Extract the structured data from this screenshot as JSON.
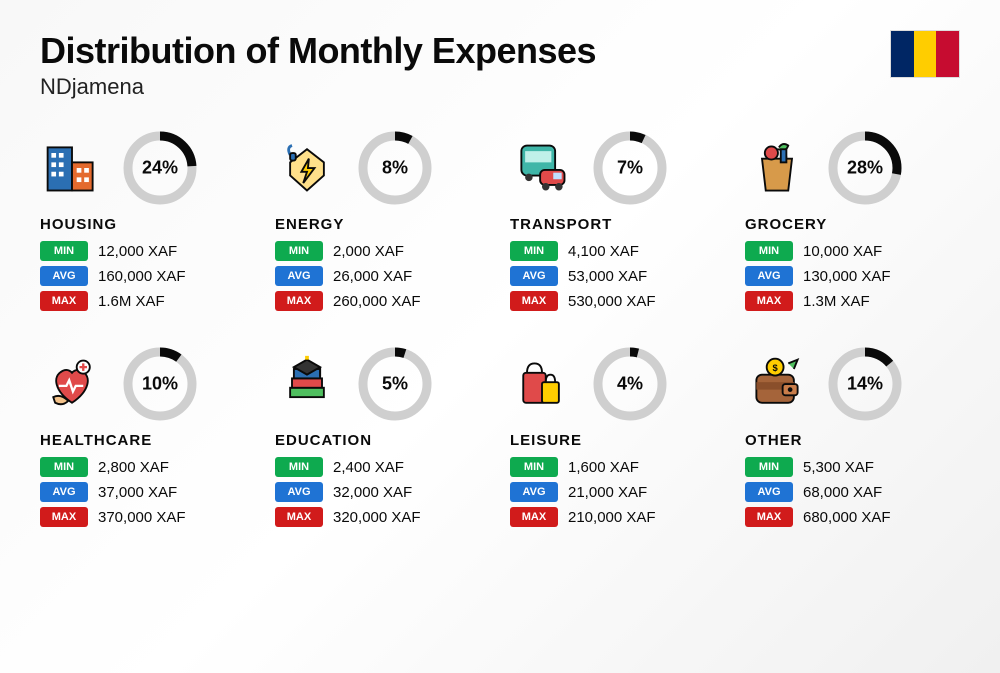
{
  "title": "Distribution of Monthly Expenses",
  "subtitle": "NDjamena",
  "flag_colors": [
    "#002664",
    "#ffcd00",
    "#c60c30"
  ],
  "donut": {
    "radius": 32,
    "stroke_width": 9,
    "track_color": "#cfcfcf",
    "fill_color": "#0a0a0a"
  },
  "badges": {
    "min": {
      "label": "MIN",
      "bg": "#0eaa4f"
    },
    "avg": {
      "label": "AVG",
      "bg": "#1f73d4"
    },
    "max": {
      "label": "MAX",
      "bg": "#d11b1b"
    }
  },
  "categories": [
    {
      "name": "HOUSING",
      "percent": 24,
      "min": "12,000 XAF",
      "avg": "160,000 XAF",
      "max": "1.6M XAF",
      "icon": "buildings"
    },
    {
      "name": "ENERGY",
      "percent": 8,
      "min": "2,000 XAF",
      "avg": "26,000 XAF",
      "max": "260,000 XAF",
      "icon": "energy"
    },
    {
      "name": "TRANSPORT",
      "percent": 7,
      "min": "4,100 XAF",
      "avg": "53,000 XAF",
      "max": "530,000 XAF",
      "icon": "transport"
    },
    {
      "name": "GROCERY",
      "percent": 28,
      "min": "10,000 XAF",
      "avg": "130,000 XAF",
      "max": "1.3M XAF",
      "icon": "grocery"
    },
    {
      "name": "HEALTHCARE",
      "percent": 10,
      "min": "2,800 XAF",
      "avg": "37,000 XAF",
      "max": "370,000 XAF",
      "icon": "healthcare"
    },
    {
      "name": "EDUCATION",
      "percent": 5,
      "min": "2,400 XAF",
      "avg": "32,000 XAF",
      "max": "320,000 XAF",
      "icon": "education"
    },
    {
      "name": "LEISURE",
      "percent": 4,
      "min": "1,600 XAF",
      "avg": "21,000 XAF",
      "max": "210,000 XAF",
      "icon": "leisure"
    },
    {
      "name": "OTHER",
      "percent": 14,
      "min": "5,300 XAF",
      "avg": "68,000 XAF",
      "max": "680,000 XAF",
      "icon": "wallet"
    }
  ]
}
